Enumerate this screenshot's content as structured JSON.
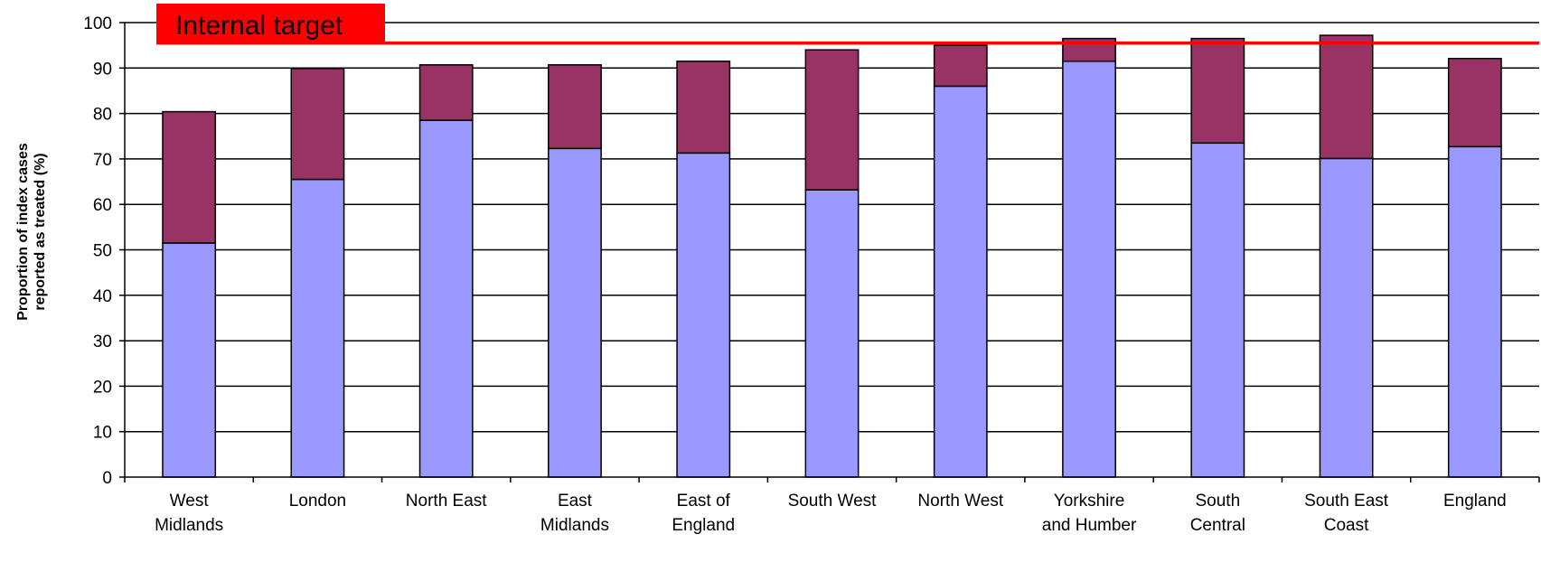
{
  "chart_data": {
    "type": "bar",
    "stacked": true,
    "categories": [
      [
        "West",
        "Midlands"
      ],
      [
        "London"
      ],
      [
        "North East"
      ],
      [
        "East",
        "Midlands"
      ],
      [
        "East of",
        "England"
      ],
      [
        "South West"
      ],
      [
        "North West"
      ],
      [
        "Yorkshire",
        "and Humber"
      ],
      [
        "South",
        "Central"
      ],
      [
        "South East",
        "Coast"
      ],
      [
        "England"
      ]
    ],
    "series": [
      {
        "color": "#9999ff",
        "values": [
          51.5,
          65.5,
          78.5,
          72.3,
          71.3,
          63.2,
          86.0,
          91.5,
          73.5,
          70.1,
          72.7
        ]
      },
      {
        "color": "#993366",
        "values": [
          28.9,
          24.4,
          12.2,
          18.4,
          20.2,
          30.8,
          9.0,
          5.0,
          23.0,
          27.1,
          19.4
        ]
      }
    ],
    "ylabel": [
      "Proportion of index cases",
      "reported as treated (%)"
    ],
    "ylim": [
      0,
      100
    ],
    "yticks": [
      0,
      10,
      20,
      30,
      40,
      50,
      60,
      70,
      80,
      90,
      100
    ],
    "grid": true,
    "target": {
      "label": "Internal target",
      "value": 95.5,
      "color": "#ff0000"
    }
  }
}
